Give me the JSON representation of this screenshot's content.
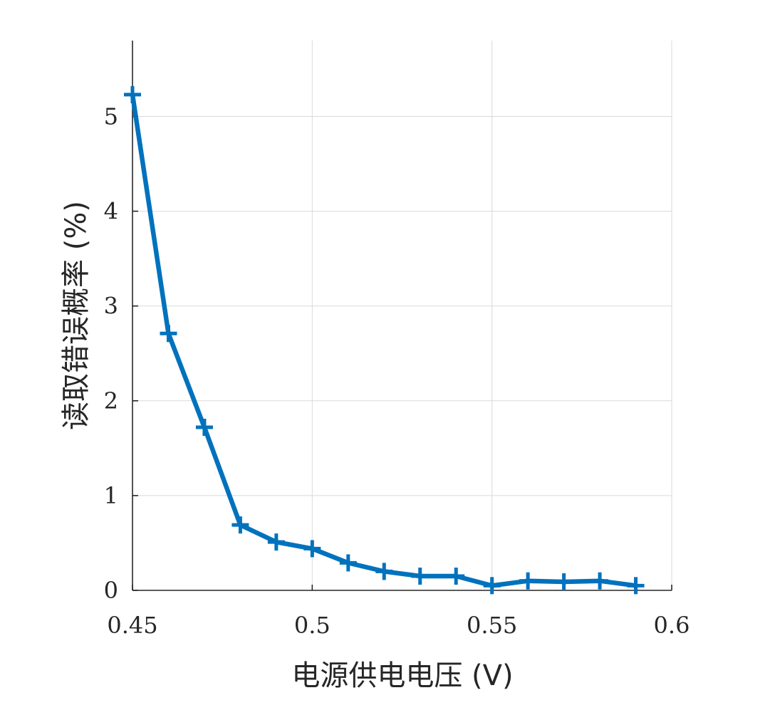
{
  "chart_data": {
    "type": "line",
    "xlabel": "电源供电电压 (V)",
    "ylabel": "读取错误概率 (%)",
    "xlim": [
      0.45,
      0.6
    ],
    "ylim": [
      0,
      5.8
    ],
    "xticks": [
      {
        "value": 0.45,
        "label": "0.45"
      },
      {
        "value": 0.5,
        "label": "0.5"
      },
      {
        "value": 0.55,
        "label": "0.55"
      },
      {
        "value": 0.6,
        "label": "0.6"
      }
    ],
    "yticks": [
      {
        "value": 0,
        "label": "0"
      },
      {
        "value": 1,
        "label": "1"
      },
      {
        "value": 2,
        "label": "2"
      },
      {
        "value": 3,
        "label": "3"
      },
      {
        "value": 4,
        "label": "4"
      },
      {
        "value": 5,
        "label": "5"
      }
    ],
    "grid": true,
    "marker": "plus",
    "color": "#0072BD",
    "series": [
      {
        "x": [
          0.45,
          0.46,
          0.47,
          0.48,
          0.49,
          0.5,
          0.51,
          0.52,
          0.53,
          0.54,
          0.55,
          0.56,
          0.57,
          0.58,
          0.59
        ],
        "y": [
          5.23,
          2.71,
          1.72,
          0.69,
          0.51,
          0.44,
          0.29,
          0.2,
          0.15,
          0.15,
          0.05,
          0.1,
          0.09,
          0.1,
          0.05
        ]
      }
    ]
  }
}
